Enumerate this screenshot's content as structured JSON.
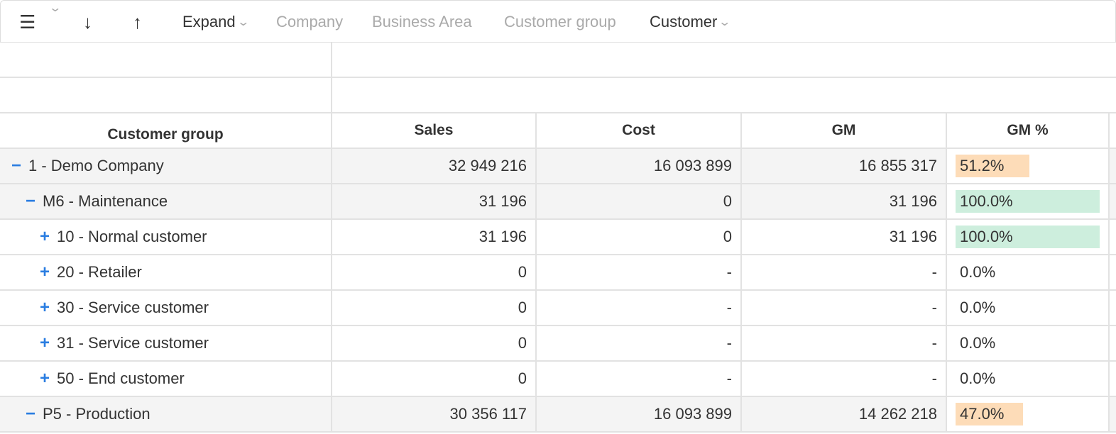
{
  "toolbar": {
    "menu_icon": "hamburger-icon",
    "down_icon": "arrow-down-icon",
    "up_icon": "arrow-up-icon",
    "expand": "Expand",
    "crumbs": [
      "Company",
      "Business Area",
      "Customer group"
    ],
    "current": "Customer"
  },
  "columns": [
    "Customer group",
    "Sales",
    "Cost",
    "GM",
    "GM %"
  ],
  "colors": {
    "orange": "#fddcb8",
    "green": "#cdeedd",
    "toggle": "#2a7de1"
  },
  "rows": [
    {
      "toggle": "−",
      "label": "1 - Demo Company",
      "level": 0,
      "sales": "32 949 216",
      "cost": "16 093 899",
      "gm": "16 855 317",
      "gm_pct": "51.2%",
      "pct": 51.2,
      "bar": "orange",
      "group": true
    },
    {
      "toggle": "−",
      "label": "M6 - Maintenance",
      "level": 1,
      "sales": "31 196",
      "cost": "0",
      "gm": "31 196",
      "gm_pct": "100.0%",
      "pct": 100,
      "bar": "green",
      "group": true
    },
    {
      "toggle": "+",
      "label": "10 - Normal customer",
      "level": 2,
      "sales": "31 196",
      "cost": "0",
      "gm": "31 196",
      "gm_pct": "100.0%",
      "pct": 100,
      "bar": "green",
      "group": false
    },
    {
      "toggle": "+",
      "label": "20 - Retailer",
      "level": 2,
      "sales": "0",
      "cost": "-",
      "gm": "-",
      "gm_pct": "0.0%",
      "pct": 0,
      "bar": "",
      "group": false
    },
    {
      "toggle": "+",
      "label": "30 - Service customer",
      "level": 2,
      "sales": "0",
      "cost": "-",
      "gm": "-",
      "gm_pct": "0.0%",
      "pct": 0,
      "bar": "",
      "group": false
    },
    {
      "toggle": "+",
      "label": "31 - Service customer",
      "level": 2,
      "sales": "0",
      "cost": "-",
      "gm": "-",
      "gm_pct": "0.0%",
      "pct": 0,
      "bar": "",
      "group": false
    },
    {
      "toggle": "+",
      "label": "50 - End customer",
      "level": 2,
      "sales": "0",
      "cost": "-",
      "gm": "-",
      "gm_pct": "0.0%",
      "pct": 0,
      "bar": "",
      "group": false
    },
    {
      "toggle": "−",
      "label": "P5 - Production",
      "level": 1,
      "sales": "30 356 117",
      "cost": "16 093 899",
      "gm": "14 262 218",
      "gm_pct": "47.0%",
      "pct": 47.0,
      "bar": "orange",
      "group": true
    }
  ]
}
